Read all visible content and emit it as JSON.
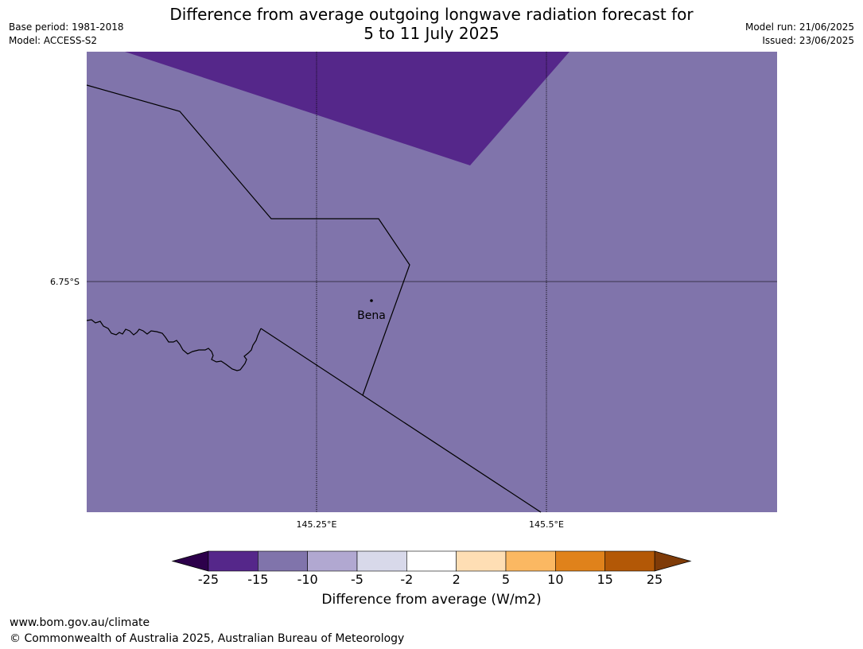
{
  "title": {
    "line1": "Difference from average outgoing longwave radiation forecast for",
    "line2": "5 to 11 July 2025"
  },
  "meta_left": {
    "base_period": "Base period: 1981-2018",
    "model": "Model: ACCESS-S2"
  },
  "meta_right": {
    "model_run": "Model run: 21/06/2025",
    "issued": "Issued: 23/06/2025"
  },
  "map": {
    "background_color": "#8074ab",
    "anomaly_patch_color": "#55278a",
    "lat_gridline_label": "6.75°S",
    "lon_gridline_labels": [
      "145.25°E",
      "145.5°E"
    ],
    "place": {
      "name": "Bena"
    }
  },
  "colorbar": {
    "label": "Difference from average (W/m2)",
    "ticks": [
      "-25",
      "-15",
      "-10",
      "-5",
      "-2",
      "2",
      "5",
      "10",
      "15",
      "25"
    ],
    "colors": [
      "#55278a",
      "#8074ab",
      "#b1a8d1",
      "#d8d9ea",
      "#ffffff",
      "#fedeb4",
      "#fbb862",
      "#e0821b",
      "#b35806"
    ],
    "under_color": "#2d004b",
    "over_color": "#7f3b08"
  },
  "footer": {
    "url": "www.bom.gov.au/climate",
    "copyright": "© Commonwealth of Australia 2025, Australian Bureau of Meteorology"
  }
}
